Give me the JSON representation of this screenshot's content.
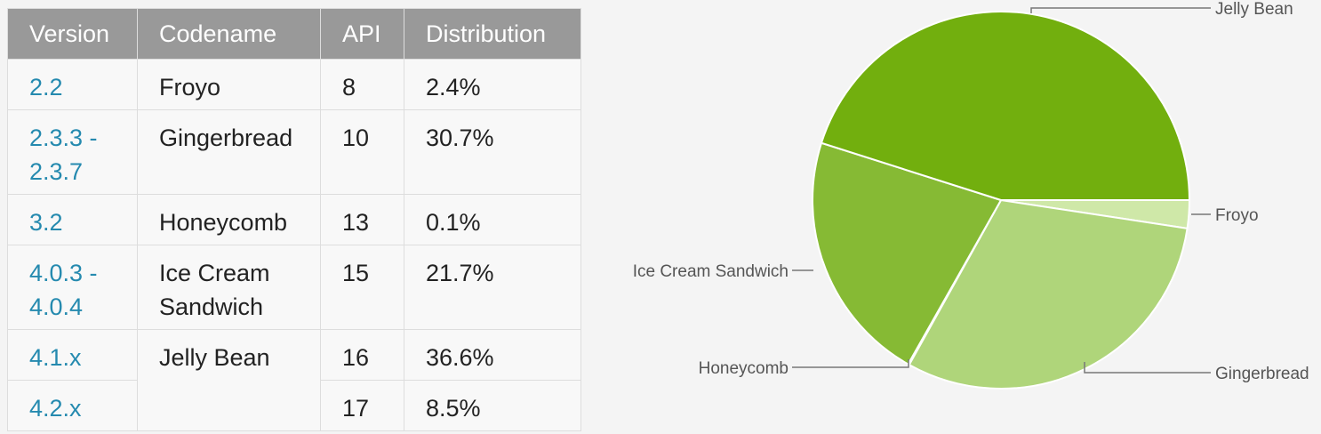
{
  "table": {
    "headers": {
      "version": "Version",
      "codename": "Codename",
      "api": "API",
      "distribution": "Distribution"
    },
    "rows": [
      {
        "version": [
          "2.2"
        ],
        "codename": [
          "Froyo"
        ],
        "api": "8",
        "distribution": "2.4%"
      },
      {
        "version": [
          "2.3.3 -",
          "2.3.7"
        ],
        "codename": [
          "Gingerbread"
        ],
        "api": "10",
        "distribution": "30.7%"
      },
      {
        "version": [
          "3.2"
        ],
        "codename": [
          "Honeycomb"
        ],
        "api": "13",
        "distribution": "0.1%"
      },
      {
        "version": [
          "4.0.3 -",
          "4.0.4"
        ],
        "codename": [
          "Ice Cream",
          "Sandwich"
        ],
        "api": "15",
        "distribution": "21.7%"
      },
      {
        "version": [
          "4.1.x"
        ],
        "codename": [
          "Jelly Bean"
        ],
        "api": "16",
        "distribution": "36.6%"
      },
      {
        "version": [
          "4.2.x"
        ],
        "api": "17",
        "distribution": "8.5%"
      }
    ]
  },
  "colors": {
    "header_bg": "#999999",
    "version_link": "#258aaf",
    "jelly_bean": "#72af0e",
    "froyo": "#cfe8a8",
    "gingerbread": "#afd57a",
    "honeycomb": "#9ac85a",
    "ice_cream_sandwich": "#86ba34"
  },
  "chart_data": {
    "type": "pie",
    "title": "",
    "slices": [
      {
        "label": "Froyo",
        "value": 2.4,
        "color": "#cfe8a8"
      },
      {
        "label": "Gingerbread",
        "value": 30.7,
        "color": "#afd57a"
      },
      {
        "label": "Honeycomb",
        "value": 0.1,
        "color": "#9ac85a"
      },
      {
        "label": "Ice Cream Sandwich",
        "value": 21.7,
        "color": "#86ba34"
      },
      {
        "label": "Jelly Bean",
        "value": 45.1,
        "color": "#72af0e"
      }
    ]
  }
}
